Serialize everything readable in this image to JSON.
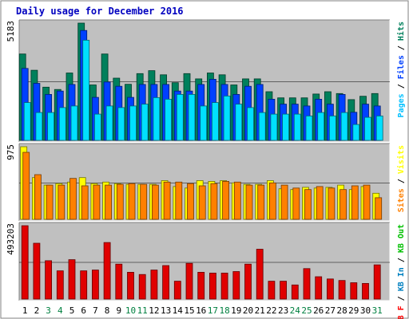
{
  "chart_data": [
    {
      "type": "bar",
      "title": "Daily usage for December 2016",
      "categories": [
        "1",
        "2",
        "3",
        "4",
        "5",
        "6",
        "7",
        "8",
        "9",
        "10",
        "11",
        "12",
        "13",
        "14",
        "15",
        "16",
        "17",
        "18",
        "19",
        "20",
        "21",
        "22",
        "23",
        "24",
        "25",
        "26",
        "27",
        "28",
        "29",
        "30",
        "31"
      ],
      "weekend_days": [
        "3",
        "4",
        "10",
        "11",
        "17",
        "18",
        "24",
        "25",
        "31"
      ],
      "max_label": "5183",
      "ylim": [
        0,
        5183
      ],
      "legend": [
        {
          "label": "Pages",
          "color": "#00c0ff"
        },
        {
          "label": "Files",
          "color": "#0040ff"
        },
        {
          "label": "Hits",
          "color": "#00805c"
        }
      ],
      "series": [
        {
          "name": "Hits",
          "color": "#00805c",
          "values": [
            3820,
            3100,
            2350,
            2250,
            2980,
            5183,
            2450,
            3820,
            2750,
            2480,
            2950,
            3080,
            2900,
            2550,
            2950,
            2720,
            2980,
            2900,
            2450,
            2720,
            2720,
            2150,
            1880,
            1880,
            1880,
            2050,
            2150,
            2070,
            1800,
            1950,
            2070
          ]
        },
        {
          "name": "Files",
          "color": "#0040ff",
          "values": [
            3180,
            2520,
            2030,
            2180,
            2470,
            4860,
            1900,
            2580,
            2390,
            1900,
            2470,
            2470,
            2470,
            2180,
            2180,
            2470,
            2700,
            2470,
            2030,
            2390,
            2470,
            1820,
            1600,
            1600,
            1520,
            1820,
            1600,
            2030,
            1240,
            1600,
            1520
          ]
        },
        {
          "name": "Pages",
          "color": "#00e0ff",
          "values": [
            1670,
            1230,
            1230,
            1450,
            1520,
            4430,
            1160,
            1520,
            1450,
            1520,
            1600,
            1890,
            1820,
            2030,
            2030,
            1520,
            1670,
            1960,
            1600,
            1450,
            1230,
            1160,
            1160,
            1160,
            1080,
            1230,
            1080,
            1230,
            700,
            1020,
            1080
          ]
        }
      ]
    },
    {
      "type": "bar",
      "max_label": "975",
      "ylim": [
        0,
        975
      ],
      "legend": [
        {
          "label": "Sites",
          "color": "#ff8000"
        },
        {
          "label": "Visits",
          "color": "#ffff00"
        }
      ],
      "series": [
        {
          "name": "Visits",
          "color": "#ffff00",
          "values": [
            975,
            560,
            460,
            480,
            500,
            560,
            480,
            500,
            480,
            470,
            470,
            470,
            520,
            440,
            420,
            520,
            510,
            520,
            490,
            470,
            470,
            520,
            410,
            400,
            430,
            420,
            430,
            460,
            400,
            440,
            350
          ]
        },
        {
          "name": "Sites",
          "color": "#ff8000",
          "values": [
            900,
            600,
            460,
            460,
            550,
            450,
            460,
            460,
            470,
            480,
            470,
            460,
            500,
            500,
            480,
            450,
            480,
            510,
            500,
            460,
            460,
            490,
            460,
            420,
            400,
            440,
            420,
            400,
            450,
            460,
            290
          ]
        }
      ]
    },
    {
      "type": "bar",
      "max_label": "493203",
      "ylim": [
        0,
        493203
      ],
      "legend": [
        {
          "label": "KB F",
          "color": "#ff0000"
        },
        {
          "label": "KB In",
          "color": "#0080c0"
        },
        {
          "label": "KB Out",
          "color": "#00c000"
        }
      ],
      "series": [
        {
          "name": "KB F",
          "color": "#e00000",
          "values": [
            493203,
            375000,
            258000,
            190000,
            265000,
            190000,
            195000,
            380000,
            235000,
            180000,
            165000,
            195000,
            225000,
            120000,
            240000,
            180000,
            175000,
            175000,
            185000,
            235000,
            335000,
            120000,
            120000,
            95000,
            205000,
            150000,
            135000,
            125000,
            110000,
            105000,
            230000
          ]
        }
      ]
    }
  ]
}
